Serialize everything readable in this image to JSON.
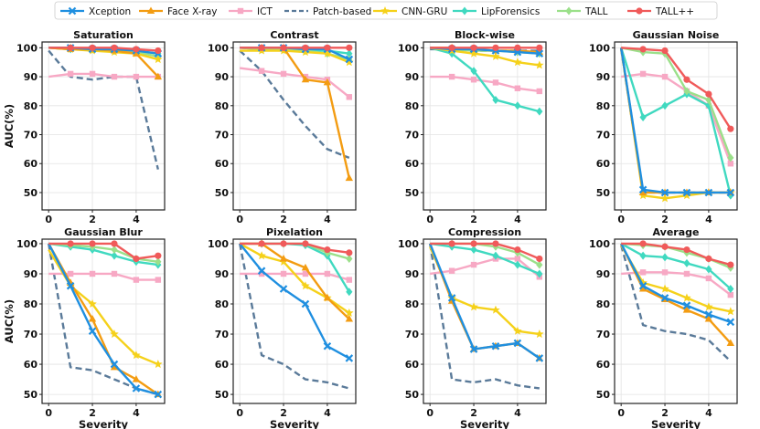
{
  "figure_title": "",
  "colors": {
    "Xception": "#1f8fe0",
    "Face X-ray": "#f39c12",
    "ICT": "#f7a8c4",
    "Patch-based": "#5a7a99",
    "CNN-GRU": "#f5d11a",
    "LipForensics": "#40d9c0",
    "TALL": "#9be08a",
    "TALL++": "#f05a5a"
  },
  "legend": {
    "entries": [
      "Xception",
      "Face X-ray",
      "ICT",
      "Patch-based",
      "CNN-GRU",
      "LipForensics",
      "TALL",
      "TALL++"
    ],
    "placement": "top-center",
    "marker_names": [
      "x-marker",
      "triangle-marker",
      "square-marker",
      "none",
      "star-marker",
      "diamond-marker",
      "diamond-marker",
      "circle-marker"
    ]
  },
  "shared": {
    "xlabel": "Severity",
    "ylabel": "AUC(%)",
    "x": [
      0,
      1,
      2,
      3,
      4,
      5
    ],
    "xticks": [
      "0",
      "2",
      "4"
    ],
    "yticks": [
      "50",
      "60",
      "70",
      "80",
      "90",
      "100"
    ]
  },
  "chart_data": [
    {
      "type": "line",
      "title": "Saturation",
      "xlabel": "",
      "ylabel": "AUC(%)",
      "ylim": [
        44,
        102
      ],
      "series": [
        {
          "name": "Patch-based",
          "values": [
            99,
            90,
            89,
            90,
            90,
            58
          ]
        },
        {
          "name": "ICT",
          "values": [
            90,
            91,
            91,
            90,
            90,
            90
          ]
        },
        {
          "name": "LipForensics",
          "values": [
            100,
            99.5,
            99.5,
            99,
            99,
            98
          ]
        },
        {
          "name": "TALL",
          "values": [
            100,
            100,
            99.5,
            99,
            98.5,
            97
          ]
        },
        {
          "name": "CNN-GRU",
          "values": [
            100,
            99.5,
            99,
            98.5,
            98,
            96
          ]
        },
        {
          "name": "Face X-ray",
          "values": [
            100,
            99.5,
            99.5,
            99,
            98,
            90
          ]
        },
        {
          "name": "Xception",
          "values": [
            100,
            100,
            99.5,
            99.5,
            99,
            98
          ]
        },
        {
          "name": "TALL++",
          "values": [
            100,
            100,
            100,
            100,
            99.5,
            99
          ]
        }
      ]
    },
    {
      "type": "line",
      "title": "Contrast",
      "xlabel": "",
      "ylabel": "",
      "ylim": [
        44,
        102
      ],
      "series": [
        {
          "name": "Patch-based",
          "values": [
            99,
            92,
            82,
            73,
            65,
            62
          ]
        },
        {
          "name": "ICT",
          "values": [
            93,
            92,
            91,
            90,
            89,
            83
          ]
        },
        {
          "name": "LipForensics",
          "values": [
            100,
            99.5,
            99.5,
            99,
            99,
            98
          ]
        },
        {
          "name": "TALL",
          "values": [
            100,
            99.5,
            99.5,
            99,
            98,
            96
          ]
        },
        {
          "name": "CNN-GRU",
          "values": [
            99,
            99,
            99,
            98.5,
            98,
            95
          ]
        },
        {
          "name": "Face X-ray",
          "values": [
            100,
            100,
            100,
            89,
            88,
            55
          ]
        },
        {
          "name": "Xception",
          "values": [
            100,
            100,
            100,
            99.5,
            99.5,
            96
          ]
        },
        {
          "name": "TALL++",
          "values": [
            100,
            100,
            100,
            100,
            100,
            100
          ]
        }
      ]
    },
    {
      "type": "line",
      "title": "Block-wise",
      "xlabel": "",
      "ylabel": "",
      "ylim": [
        44,
        102
      ],
      "series": [
        {
          "name": "Patch-based",
          "values": [
            99.5,
            99.5,
            99,
            99,
            99,
            99
          ]
        },
        {
          "name": "ICT",
          "values": [
            90,
            90,
            89,
            88,
            86,
            85
          ]
        },
        {
          "name": "LipForensics",
          "values": [
            100,
            98,
            92,
            82,
            80,
            78
          ]
        },
        {
          "name": "TALL",
          "values": [
            100,
            99.5,
            99,
            99,
            98.5,
            98
          ]
        },
        {
          "name": "CNN-GRU",
          "values": [
            100,
            99,
            98,
            97,
            95,
            94
          ]
        },
        {
          "name": "Face X-ray",
          "values": [
            100,
            100,
            99.5,
            99,
            99,
            98.5
          ]
        },
        {
          "name": "Xception",
          "values": [
            100,
            99.5,
            99.5,
            99,
            98.5,
            98
          ]
        },
        {
          "name": "TALL++",
          "values": [
            100,
            100,
            100,
            100,
            100,
            100
          ]
        }
      ]
    },
    {
      "type": "line",
      "title": "Gaussian Noise",
      "xlabel": "",
      "ylabel": "",
      "ylim": [
        44,
        102
      ],
      "series": [
        {
          "name": "Patch-based",
          "values": [
            99.5,
            50,
            50,
            50,
            50,
            50
          ]
        },
        {
          "name": "ICT",
          "values": [
            90,
            91,
            90,
            85,
            80,
            60
          ]
        },
        {
          "name": "LipForensics",
          "values": [
            100,
            76,
            80,
            84,
            80,
            49
          ]
        },
        {
          "name": "TALL",
          "values": [
            100,
            98.5,
            98,
            85,
            82,
            62
          ]
        },
        {
          "name": "CNN-GRU",
          "values": [
            100,
            49,
            48,
            49,
            50,
            50
          ]
        },
        {
          "name": "Face X-ray",
          "values": [
            100,
            50,
            50,
            50,
            50,
            50
          ]
        },
        {
          "name": "Xception",
          "values": [
            100,
            51,
            50,
            50,
            50,
            50
          ]
        },
        {
          "name": "TALL++",
          "values": [
            100,
            99.5,
            99,
            89,
            84,
            72
          ]
        }
      ]
    },
    {
      "type": "line",
      "title": "Gaussian Blur",
      "xlabel": "Severity",
      "ylabel": "AUC(%)",
      "ylim": [
        47,
        101.5
      ],
      "series": [
        {
          "name": "Patch-based",
          "values": [
            100,
            59,
            58,
            55,
            52,
            50
          ]
        },
        {
          "name": "ICT",
          "values": [
            90,
            90,
            90,
            90,
            88,
            88
          ]
        },
        {
          "name": "LipForensics",
          "values": [
            100,
            99,
            98,
            96,
            94,
            93
          ]
        },
        {
          "name": "TALL",
          "values": [
            100,
            99.5,
            99,
            98,
            95,
            94
          ]
        },
        {
          "name": "CNN-GRU",
          "values": [
            98,
            86,
            80,
            70,
            63,
            60
          ]
        },
        {
          "name": "Face X-ray",
          "values": [
            100,
            87,
            75,
            59,
            55,
            50
          ]
        },
        {
          "name": "Xception",
          "values": [
            100,
            86,
            71,
            60,
            52,
            50
          ]
        },
        {
          "name": "TALL++",
          "values": [
            100,
            100,
            100,
            100,
            95,
            96
          ]
        }
      ]
    },
    {
      "type": "line",
      "title": "Pixelation",
      "xlabel": "Severity",
      "ylabel": "",
      "ylim": [
        47,
        101.5
      ],
      "series": [
        {
          "name": "Patch-based",
          "values": [
            100,
            63,
            60,
            55,
            54,
            52
          ]
        },
        {
          "name": "ICT",
          "values": [
            90,
            90,
            90,
            90,
            90,
            88
          ]
        },
        {
          "name": "LipForensics",
          "values": [
            100,
            100,
            100,
            99.5,
            96,
            84
          ]
        },
        {
          "name": "TALL",
          "values": [
            100,
            100,
            100,
            100,
            97,
            95
          ]
        },
        {
          "name": "CNN-GRU",
          "values": [
            100,
            96,
            94,
            86,
            82,
            77
          ]
        },
        {
          "name": "Face X-ray",
          "values": [
            100,
            100,
            95,
            92,
            82,
            75
          ]
        },
        {
          "name": "Xception",
          "values": [
            100,
            91,
            85,
            80,
            66,
            62
          ]
        },
        {
          "name": "TALL++",
          "values": [
            100,
            100,
            100,
            100,
            98,
            97
          ]
        }
      ]
    },
    {
      "type": "line",
      "title": "Compression",
      "xlabel": "Severity",
      "ylabel": "",
      "ylim": [
        47,
        101.5
      ],
      "series": [
        {
          "name": "Patch-based",
          "values": [
            100,
            55,
            54,
            55,
            53,
            52
          ]
        },
        {
          "name": "ICT",
          "values": [
            90,
            91,
            93,
            95,
            95,
            89
          ]
        },
        {
          "name": "LipForensics",
          "values": [
            100,
            99,
            98,
            96,
            93,
            90
          ]
        },
        {
          "name": "TALL",
          "values": [
            100,
            100,
            100,
            99,
            97,
            93
          ]
        },
        {
          "name": "CNN-GRU",
          "values": [
            99,
            82,
            79,
            78,
            71,
            70
          ]
        },
        {
          "name": "Face X-ray",
          "values": [
            100,
            81,
            65,
            66,
            67,
            62
          ]
        },
        {
          "name": "Xception",
          "values": [
            100,
            82,
            65,
            66,
            67,
            62
          ]
        },
        {
          "name": "TALL++",
          "values": [
            100,
            100,
            100,
            100,
            98,
            95
          ]
        }
      ]
    },
    {
      "type": "line",
      "title": "Average",
      "xlabel": "Severity",
      "ylabel": "",
      "ylim": [
        47,
        101.5
      ],
      "series": [
        {
          "name": "Patch-based",
          "values": [
            99.5,
            73,
            71,
            70,
            68,
            61
          ]
        },
        {
          "name": "ICT",
          "values": [
            90,
            90.5,
            90.5,
            90,
            88.5,
            83
          ]
        },
        {
          "name": "LipForensics",
          "values": [
            100,
            96,
            95.5,
            93.5,
            91.5,
            85
          ]
        },
        {
          "name": "TALL",
          "values": [
            100,
            99.5,
            99,
            97,
            95,
            92
          ]
        },
        {
          "name": "CNN-GRU",
          "values": [
            99.5,
            87,
            85,
            82,
            79,
            77.5
          ]
        },
        {
          "name": "Face X-ray",
          "values": [
            100,
            85,
            81.5,
            78,
            75,
            67
          ]
        },
        {
          "name": "Xception",
          "values": [
            100,
            86,
            82,
            79.5,
            76.5,
            74
          ]
        },
        {
          "name": "TALL++",
          "values": [
            100,
            100,
            99,
            98,
            95,
            93
          ]
        }
      ]
    }
  ]
}
